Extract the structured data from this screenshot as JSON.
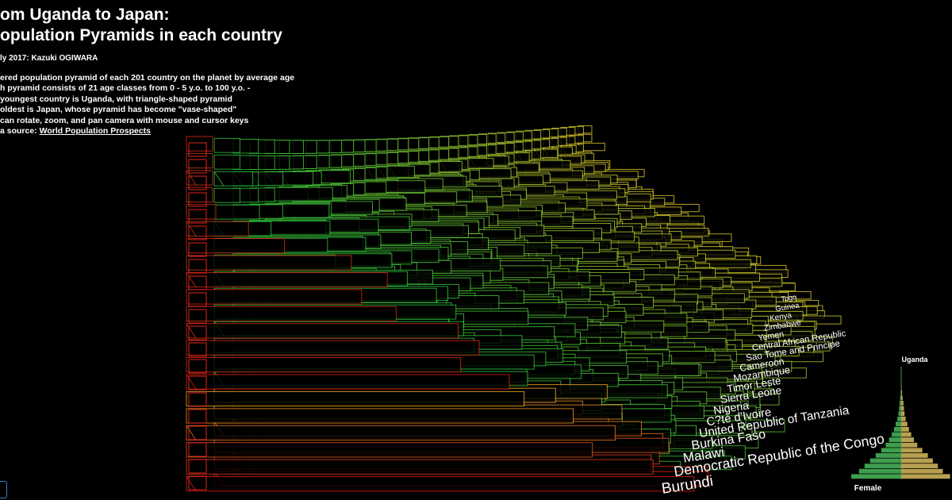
{
  "header": {
    "title_lines": [
      "om Uganda to Japan:",
      "opulation Pyramids in each country"
    ],
    "byline": "ly 2017: Kazuki OGIWARA",
    "description": [
      "ered population pyramid of each 201 country on the planet by average age",
      "h pyramid consists of 21 age classes from 0 - 5 y.o. to 100 y.o. -",
      " youngest country is Uganda, with triangle-shaped pyramid",
      " oldest is Japan, whose pyramid has become \"vase-shaped\"",
      " can rotate, zoom, and pan camera with mouse and cursor keys"
    ],
    "source_prefix": "a source: ",
    "source_link": "World Population Prospects"
  },
  "countries": [
    "Burundi",
    "Democratic Republic of the Congo",
    "Malawi",
    "Burkina Faso",
    "United Republic of Tanzania",
    "C?te d'Ivoire",
    "Nigeria",
    "Sierra Leone",
    "Timor Leste",
    "Mozambique",
    "Cameroon",
    "Sao Tome and Principe",
    "Central African Republic",
    "Yemen",
    "Zimbabwe",
    "Kenya",
    "Guinea",
    "Togo"
  ],
  "chart_data": {
    "type": "pyramid",
    "title": "Uganda",
    "series": [
      {
        "color": "#3e9e4e",
        "values": [
          9.0,
          7.6,
          6.6,
          5.6,
          4.6,
          3.6,
          2.8,
          2.2,
          1.7,
          1.3,
          1.0,
          0.7,
          0.5,
          0.4,
          0.3,
          0.2,
          0.1,
          0.05,
          0.02,
          0.01,
          0
        ]
      },
      {
        "name": "Female",
        "color": "#b8a050",
        "values": [
          8.8,
          7.5,
          6.6,
          5.7,
          4.8,
          3.8,
          2.9,
          2.3,
          1.8,
          1.4,
          1.1,
          0.8,
          0.6,
          0.5,
          0.4,
          0.25,
          0.15,
          0.07,
          0.03,
          0.01,
          0
        ]
      }
    ]
  }
}
